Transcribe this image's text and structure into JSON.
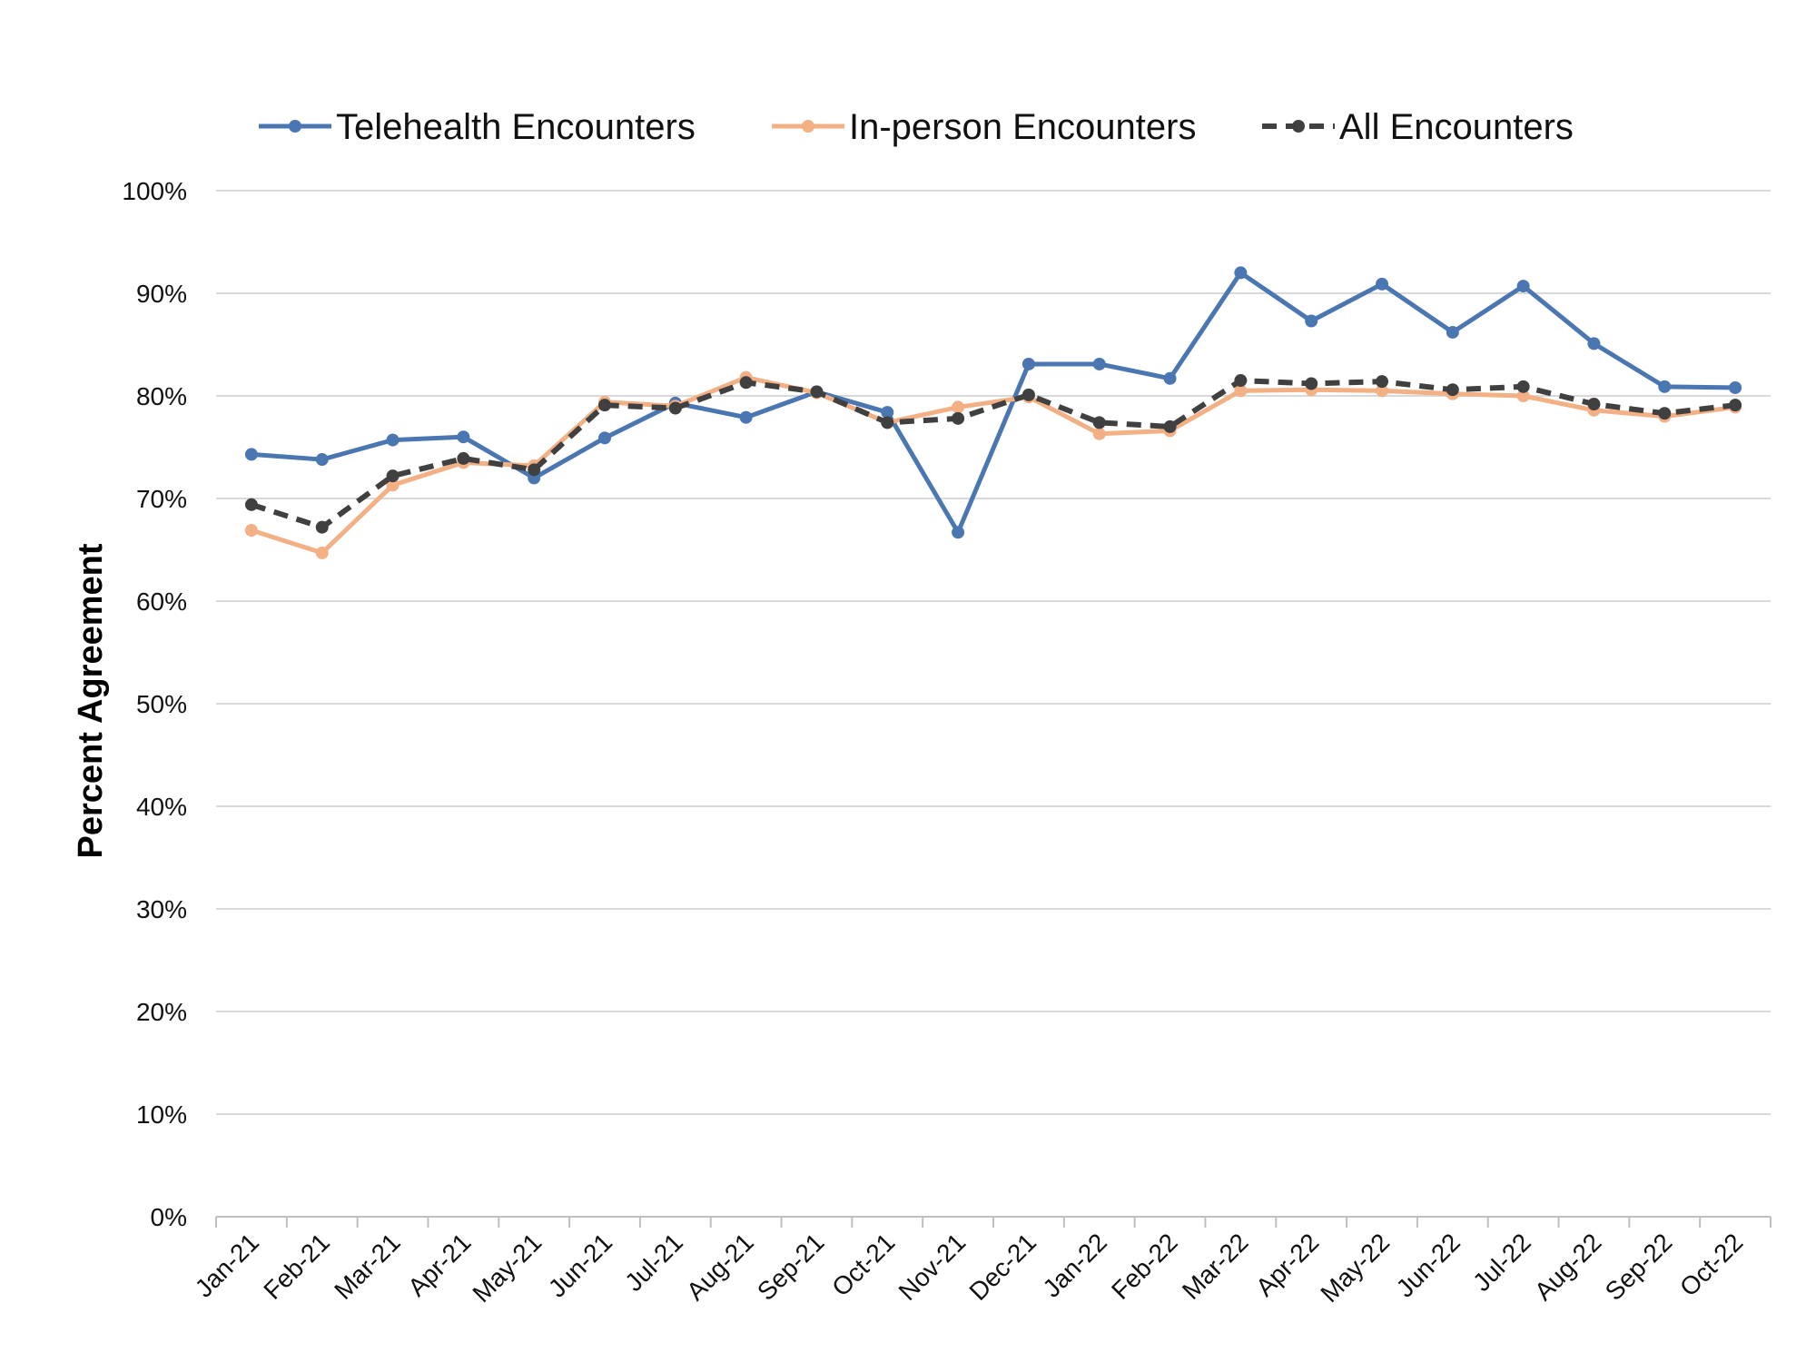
{
  "chart_data": {
    "type": "line",
    "title": "",
    "xlabel": "",
    "ylabel": "Percent Agreement",
    "ylim": [
      0,
      100
    ],
    "y_ticks": [
      0,
      10,
      20,
      30,
      40,
      50,
      60,
      70,
      80,
      90,
      100
    ],
    "y_tick_labels": [
      "0%",
      "10%",
      "20%",
      "30%",
      "40%",
      "50%",
      "60%",
      "70%",
      "80%",
      "90%",
      "100%"
    ],
    "grid": true,
    "legend_position": "top",
    "categories": [
      "Jan-21",
      "Feb-21",
      "Mar-21",
      "Apr-21",
      "May-21",
      "Jun-21",
      "Jul-21",
      "Aug-21",
      "Sep-21",
      "Oct-21",
      "Nov-21",
      "Dec-21",
      "Jan-22",
      "Feb-22",
      "Mar-22",
      "Apr-22",
      "May-22",
      "Jun-22",
      "Jul-22",
      "Aug-22",
      "Sep-22",
      "Oct-22"
    ],
    "series": [
      {
        "name": "Telehealth Encounters",
        "color": "#4A76B2",
        "dashed": false,
        "values": [
          74.3,
          73.8,
          75.7,
          76.0,
          72.0,
          75.9,
          79.3,
          77.9,
          80.4,
          78.4,
          66.7,
          83.1,
          83.1,
          81.7,
          92.0,
          87.3,
          90.9,
          86.2,
          90.7,
          85.1,
          80.9,
          80.8
        ]
      },
      {
        "name": "In-person Encounters",
        "color": "#F2B084",
        "dashed": false,
        "values": [
          66.9,
          64.7,
          71.3,
          73.5,
          73.2,
          79.4,
          79.0,
          81.8,
          80.3,
          77.4,
          78.9,
          79.9,
          76.3,
          76.6,
          80.5,
          80.6,
          80.5,
          80.2,
          80.0,
          78.6,
          78.0,
          78.9
        ]
      },
      {
        "name": "All Encounters",
        "color": "#404040",
        "dashed": true,
        "values": [
          69.4,
          67.2,
          72.2,
          73.9,
          72.8,
          79.1,
          78.8,
          81.3,
          80.4,
          77.4,
          77.8,
          80.1,
          77.4,
          77.0,
          81.5,
          81.2,
          81.4,
          80.6,
          80.9,
          79.2,
          78.3,
          79.1
        ]
      }
    ]
  }
}
